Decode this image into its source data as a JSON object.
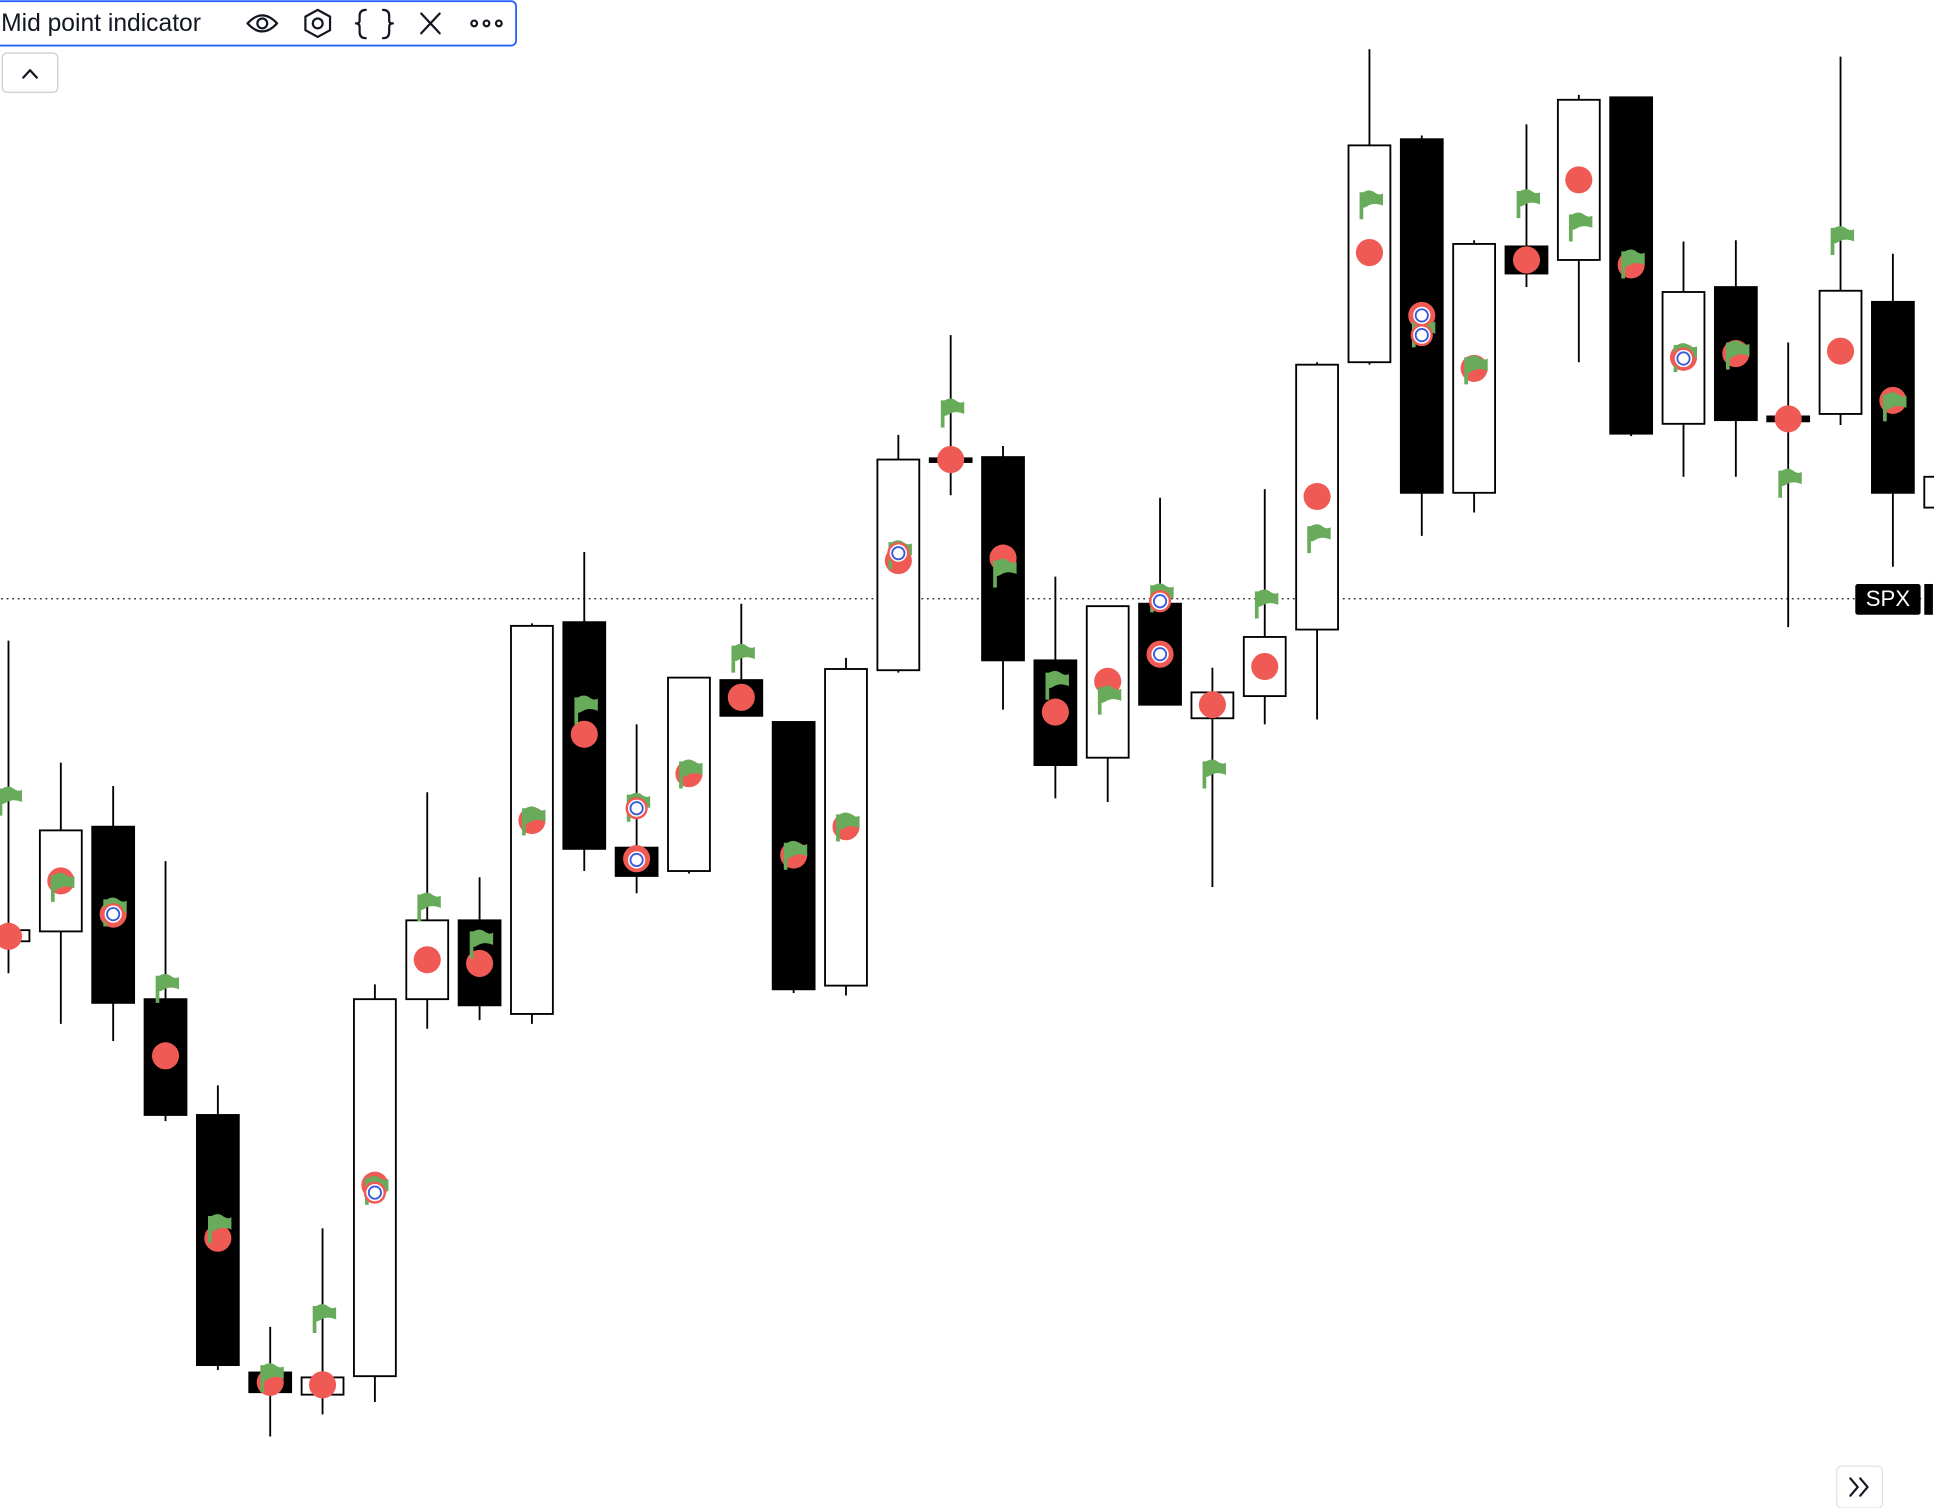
{
  "chart_data": {
    "type": "candlestick",
    "title": "Mid point indicator",
    "ylim": [
      0,
      1224
    ],
    "open": [
      460,
      468,
      553,
      413,
      319,
      110,
      92,
      107,
      413,
      477,
      401,
      719,
      536,
      517,
      672,
      638,
      424,
      680,
      852,
      853,
      688,
      609,
      734,
      641,
      659,
      713,
      930,
      1111,
      824,
      1024,
      1013,
      1145,
      880,
      991,
      886,
      888,
      979,
      812
    ],
    "high": [
      704,
      605,
      586,
      525,
      343,
      147,
      227,
      425,
      581,
      512,
      718,
      776,
      636,
      674,
      734,
      638,
      690,
      871,
      952,
      862,
      756,
      732,
      820,
      682,
      827,
      930,
      1184,
      1114,
      1029,
      1123,
      1147,
      1145,
      1028,
      1029,
      946,
      1178,
      1018,
      850
    ],
    "low": [
      434,
      393,
      379,
      314,
      112,
      58,
      76,
      86,
      389,
      396,
      393,
      517,
      499,
      515,
      643,
      418,
      416,
      678,
      822,
      648,
      576,
      573,
      652,
      504,
      636,
      640,
      928,
      789,
      808,
      991,
      930,
      870,
      837,
      837,
      715,
      879,
      764,
      800
    ],
    "close": [
      469,
      550,
      410,
      319,
      116,
      94,
      106,
      413,
      477,
      408,
      716,
      535,
      513,
      674,
      643,
      421,
      681,
      851,
      849,
      688,
      603,
      732,
      652,
      662,
      707,
      928,
      1106,
      824,
      1026,
      1002,
      1143,
      872,
      987,
      883,
      882,
      988,
      824,
      837
    ],
    "midpoint": [
      464,
      509,
      482,
      367,
      219,
      102,
      100,
      262,
      445,
      442,
      558,
      628,
      527,
      596,
      658,
      530,
      553,
      769,
      851,
      771,
      646,
      671,
      693,
      652,
      683,
      821,
      1019,
      968,
      925,
      1013,
      1078,
      1009,
      934,
      937,
      884,
      939,
      899,
      null
    ],
    "flag": [
      574,
      504,
      484,
      422,
      227,
      106,
      154,
      258,
      488,
      458,
      558,
      648,
      569,
      596,
      690,
      530,
      553,
      774,
      889,
      759,
      668,
      656,
      739,
      596,
      734,
      787,
      1058,
      954,
      924,
      1059,
      1040,
      1010,
      934,
      936,
      832,
      1029,
      894,
      null
    ],
    "circles": [
      null,
      null,
      [
        482
      ],
      null,
      null,
      null,
      null,
      [
        256
      ],
      null,
      null,
      null,
      null,
      [
        568,
        526
      ],
      null,
      null,
      null,
      null,
      [
        775
      ],
      null,
      null,
      null,
      null,
      [
        736,
        693
      ],
      null,
      null,
      null,
      null,
      [
        968,
        952
      ],
      null,
      null,
      null,
      null,
      [
        933
      ],
      null,
      null,
      null,
      null,
      null
    ],
    "price_line": {
      "label": "SPX",
      "value": 738
    }
  }
}
